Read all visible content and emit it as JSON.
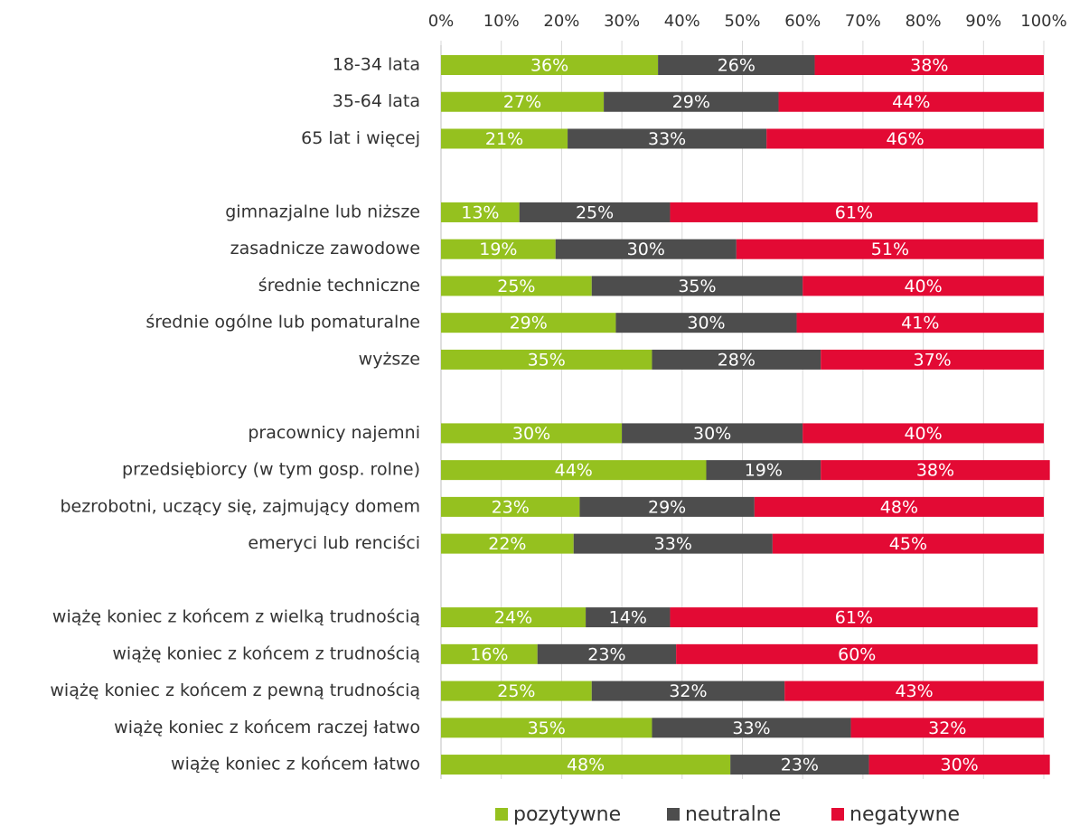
{
  "chart_data": {
    "type": "stacked_barh",
    "categories": [
      "18-34 lata",
      "35-64 lata",
      "65 lat i więcej",
      null,
      "gimnazjalne lub niższe",
      "zasadnicze zawodowe",
      "średnie techniczne",
      "średnie ogólne lub pomaturalne",
      "wyższe",
      null,
      "pracownicy najemni",
      "przedsiębiorcy (w tym gosp. rolne)",
      "bezrobotni, uczący się, zajmujący domem",
      "emeryci lub renciści",
      null,
      "wiążę koniec z końcem z wielką trudnością",
      "wiążę koniec z końcem z trudnością",
      "wiążę koniec z końcem z pewną trudnością",
      "wiążę koniec z końcem raczej łatwo",
      "wiążę koniec z końcem łatwo"
    ],
    "series": [
      {
        "name": "pozytywne",
        "color": "#95c11f",
        "values": [
          36,
          27,
          21,
          null,
          13,
          19,
          25,
          29,
          35,
          null,
          30,
          44,
          23,
          22,
          null,
          24,
          16,
          25,
          35,
          48
        ],
        "value_labels": [
          "36%",
          "27%",
          "21%",
          null,
          "13%",
          "19%",
          "25%",
          "29%",
          "35%",
          null,
          "30%",
          "44%",
          "23%",
          "22%",
          null,
          "24%",
          "16%",
          "25%",
          "35%",
          "48%"
        ]
      },
      {
        "name": "neutralne",
        "color": "#4d4d4d",
        "values": [
          26,
          29,
          33,
          null,
          25,
          30,
          35,
          30,
          28,
          null,
          30,
          19,
          29,
          33,
          null,
          14,
          23,
          32,
          33,
          23
        ],
        "value_labels": [
          "26%",
          "29%",
          "33%",
          null,
          "25%",
          "30%",
          "35%",
          "30%",
          "28%",
          null,
          "30%",
          "19%",
          "29%",
          "33%",
          null,
          "14%",
          "23%",
          "32%",
          "33%",
          "23%"
        ]
      },
      {
        "name": "negatywne",
        "color": "#e30a34",
        "values": [
          38,
          44,
          46,
          null,
          61,
          51,
          40,
          41,
          37,
          null,
          40,
          38,
          48,
          45,
          null,
          61,
          60,
          43,
          32,
          30
        ],
        "value_labels": [
          "38%",
          "44%",
          "46%",
          null,
          "61%",
          "51%",
          "40%",
          "41%",
          "37%",
          null,
          "40%",
          "38%",
          "48%",
          "45%",
          null,
          "61%",
          "60%",
          "43%",
          "32%",
          "30%"
        ]
      }
    ],
    "xlim": [
      0,
      100
    ],
    "xticks": [
      {
        "value": 0,
        "label": "0%"
      },
      {
        "value": 10,
        "label": "10%"
      },
      {
        "value": 20,
        "label": "20%"
      },
      {
        "value": 30,
        "label": "30%"
      },
      {
        "value": 40,
        "label": "40%"
      },
      {
        "value": 50,
        "label": "50%"
      },
      {
        "value": 60,
        "label": "60%"
      },
      {
        "value": 70,
        "label": "70%"
      },
      {
        "value": 80,
        "label": "80%"
      },
      {
        "value": 90,
        "label": "90%"
      },
      {
        "value": 100,
        "label": "100%"
      }
    ],
    "grid": true,
    "legend": "bottom"
  }
}
